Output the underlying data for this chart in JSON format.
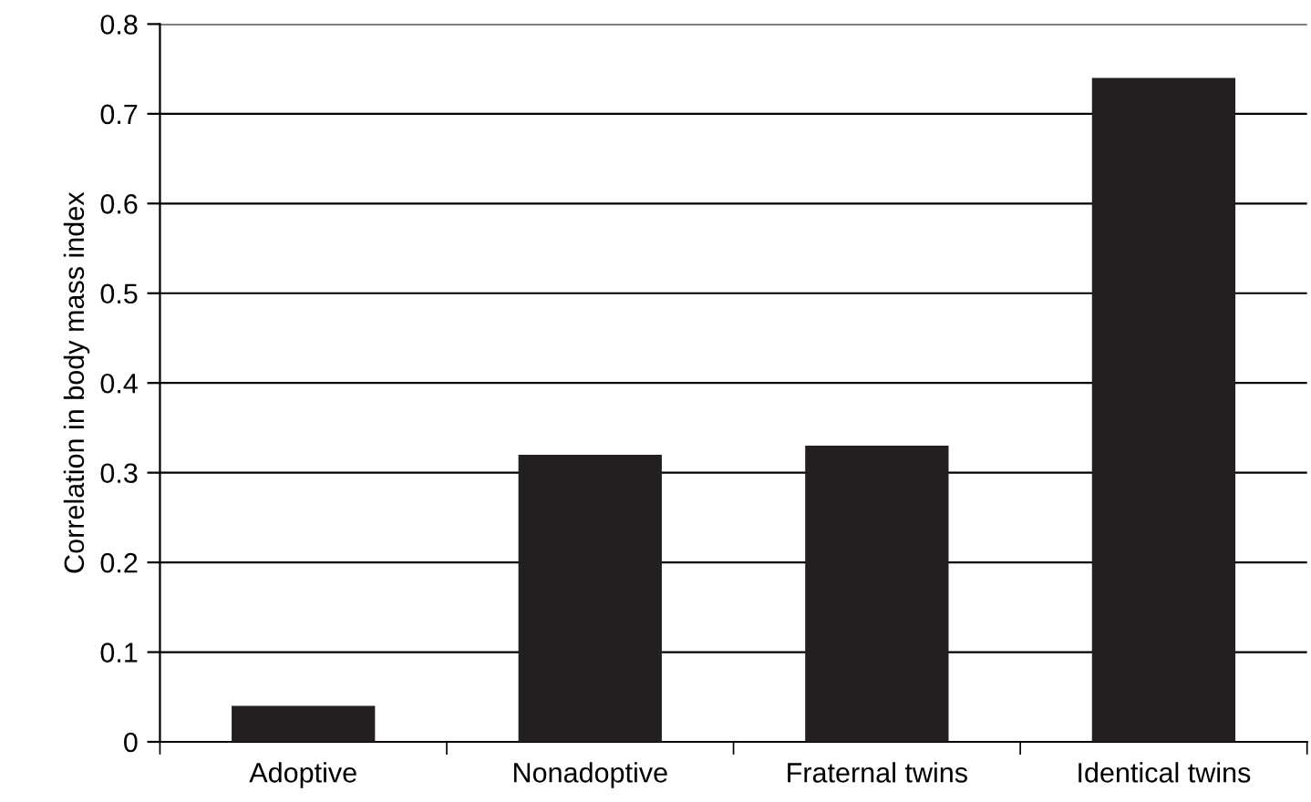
{
  "chart_data": {
    "type": "bar",
    "ylabel": "Correlation in body mass index",
    "categories": [
      "Adoptive",
      "Nonadoptive",
      "Fraternal twins",
      "Identical twins"
    ],
    "values": [
      0.04,
      0.32,
      0.33,
      0.74
    ],
    "color": "#231f20",
    "ylim": [
      0,
      0.8
    ],
    "yticks": [
      0,
      0.1,
      0.2,
      0.3,
      0.4,
      0.5,
      0.6,
      0.7,
      0.8
    ],
    "grid": "y",
    "legend": false
  }
}
